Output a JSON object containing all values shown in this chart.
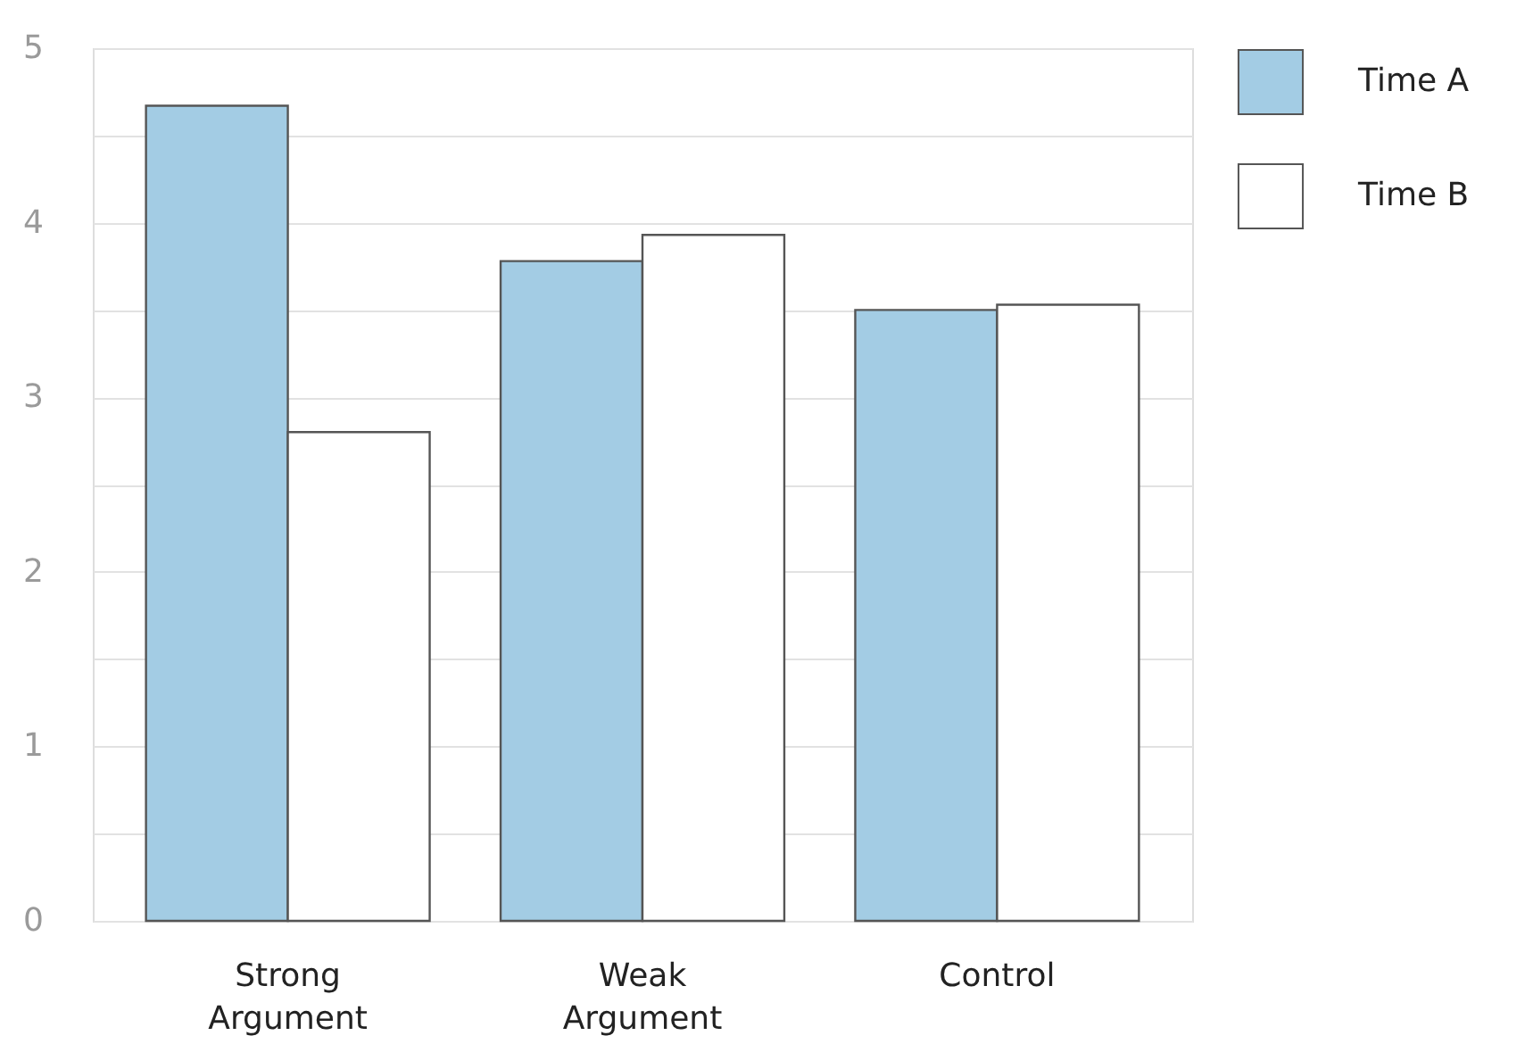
{
  "chart_data": {
    "type": "bar",
    "categories": [
      "Strong Argument",
      "Weak Argument",
      "Control"
    ],
    "series": [
      {
        "name": "Time A",
        "color": "#a3cce4",
        "values": [
          4.67,
          3.78,
          3.5
        ]
      },
      {
        "name": "Time B",
        "color": "#ffffff",
        "values": [
          2.8,
          3.93,
          3.53
        ]
      }
    ],
    "ylim": [
      0,
      5
    ],
    "yticks": [
      0,
      {
        "value": 0.5,
        "label": null
      },
      1,
      {
        "value": 1.5,
        "label": null
      },
      2,
      {
        "value": 2.5,
        "label": null
      },
      3,
      {
        "value": 3.5,
        "label": null
      },
      4,
      {
        "value": 4.5,
        "label": null
      },
      5
    ],
    "grid": "y",
    "legend": "right"
  }
}
